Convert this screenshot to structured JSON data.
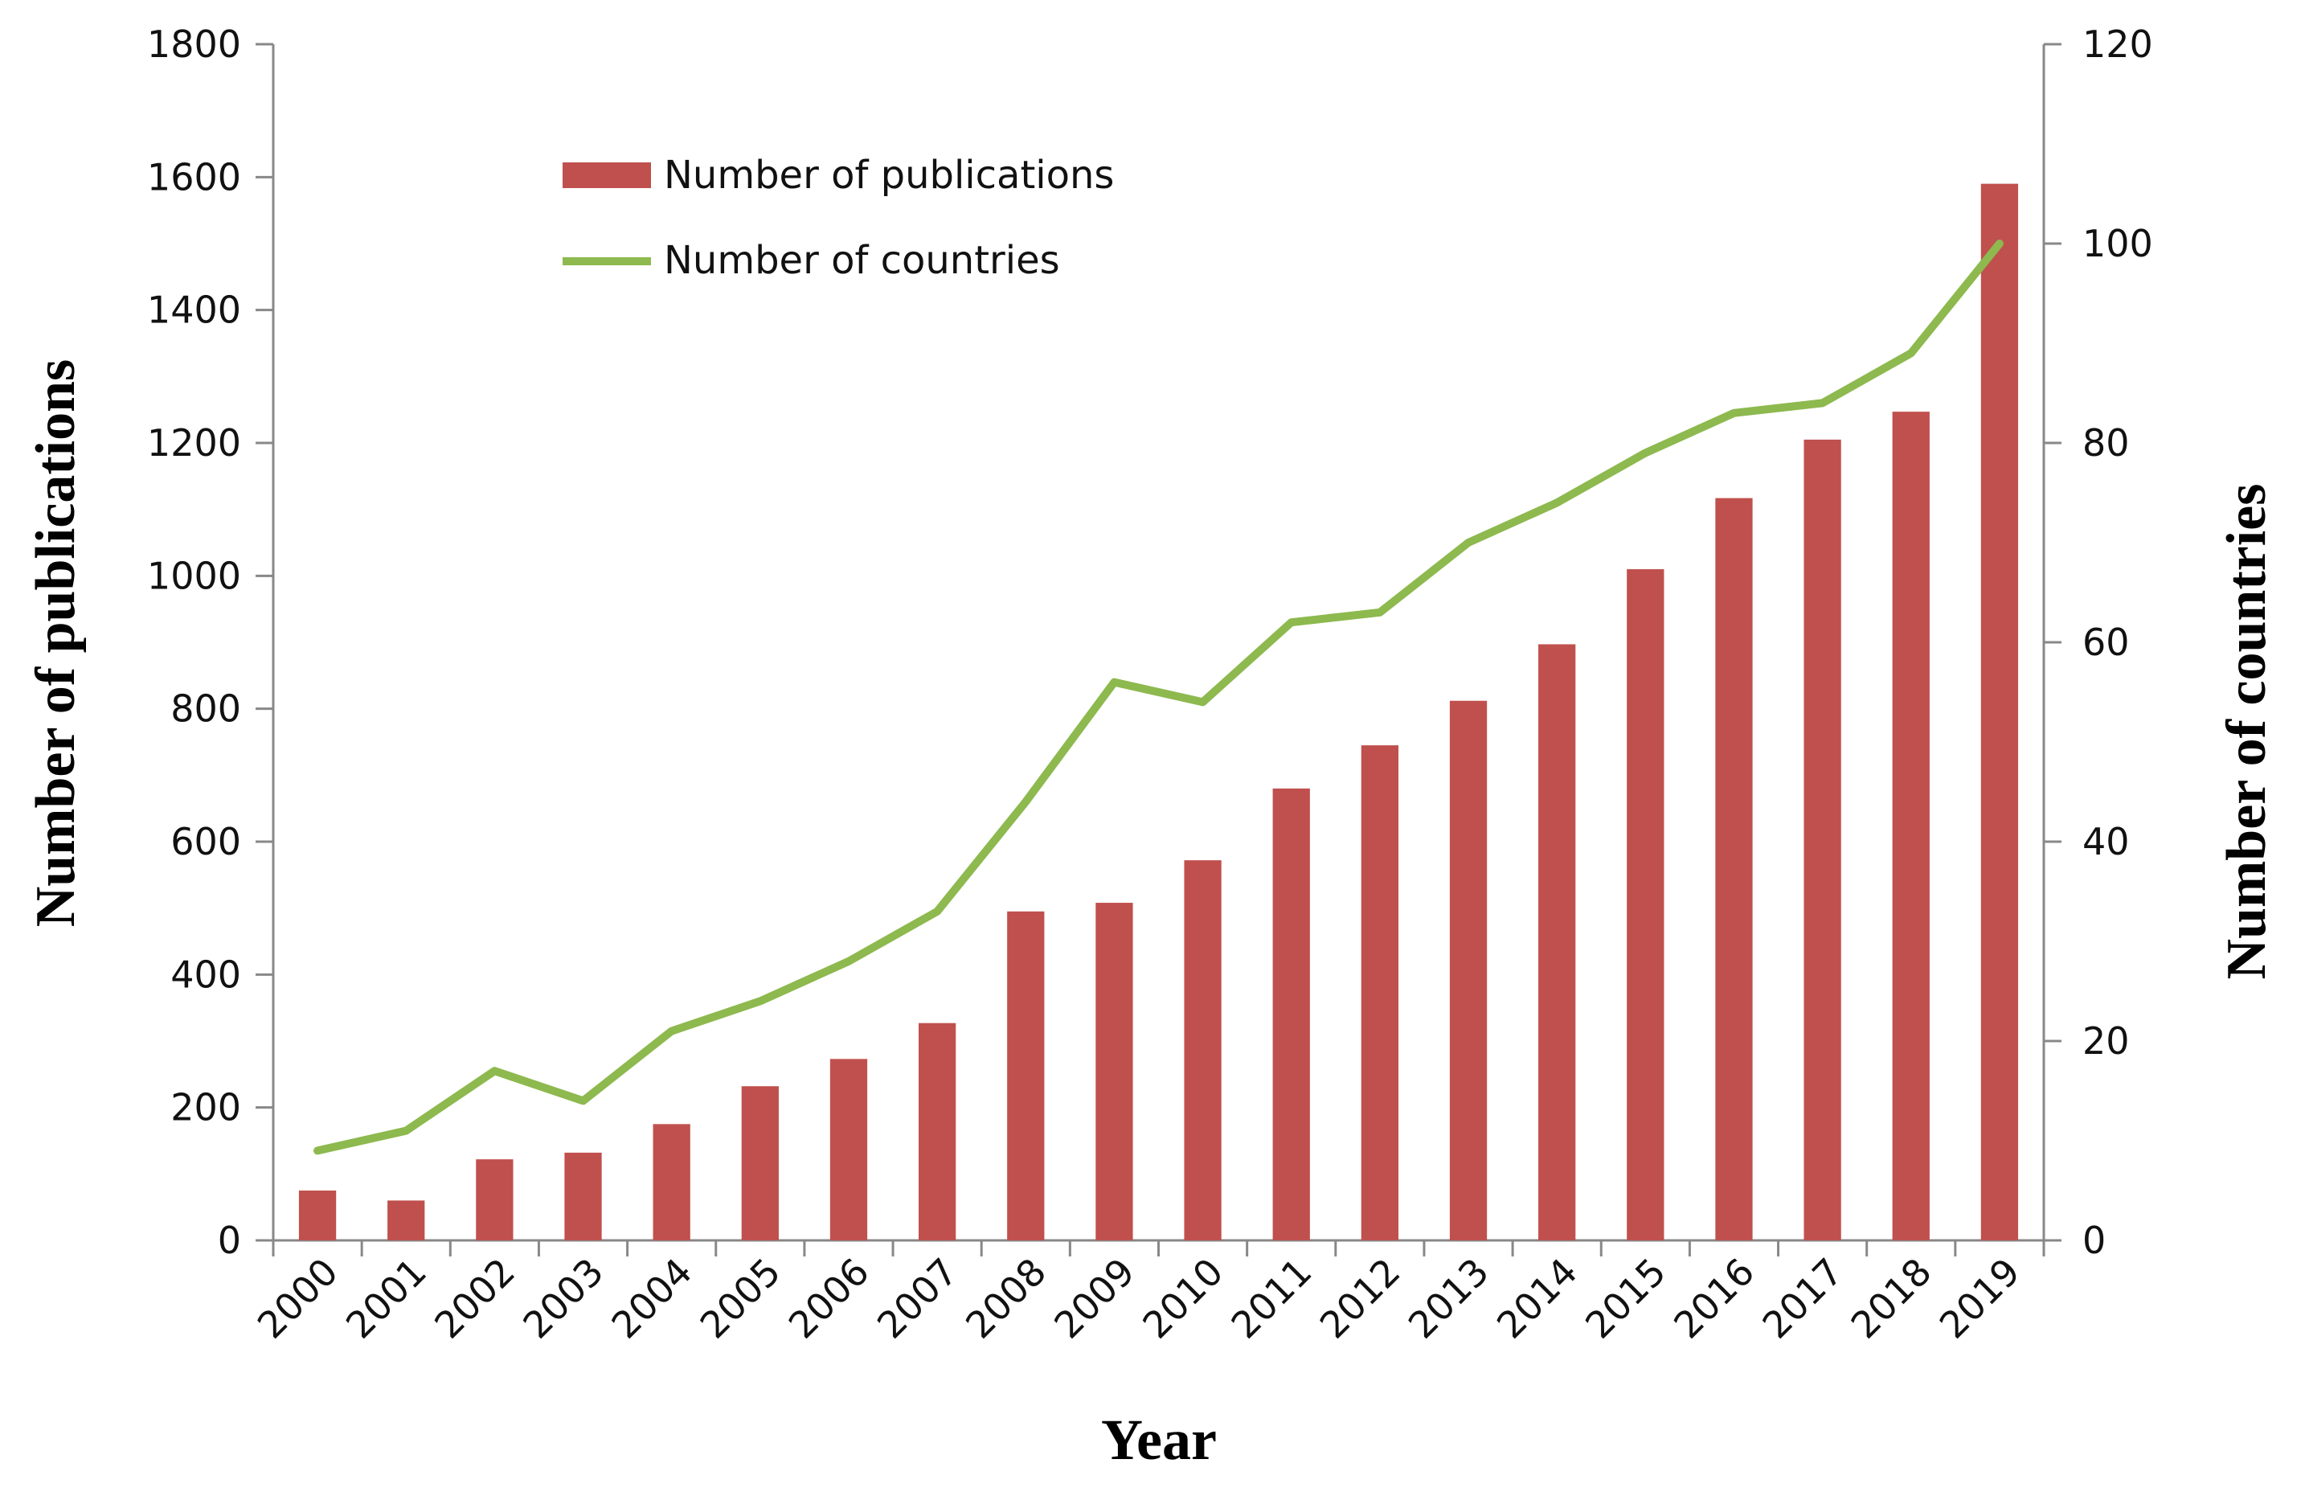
{
  "chart_data": {
    "type": "bar",
    "categories": [
      "2000",
      "2001",
      "2002",
      "2003",
      "2004",
      "2005",
      "2006",
      "2007",
      "2008",
      "2009",
      "2010",
      "2011",
      "2012",
      "2013",
      "2014",
      "2015",
      "2016",
      "2017",
      "2018",
      "2019"
    ],
    "series": [
      {
        "name": "Number of publications",
        "type": "bar",
        "axis": "left",
        "color": "#C0504D",
        "values": [
          75,
          60,
          122,
          132,
          175,
          232,
          273,
          327,
          495,
          508,
          572,
          680,
          745,
          812,
          897,
          1010,
          1117,
          1205,
          1247,
          1590
        ]
      },
      {
        "name": "Number of countries",
        "type": "line",
        "axis": "right",
        "color": "#8DB94E",
        "values": [
          9,
          11,
          17,
          14,
          21,
          24,
          28,
          33,
          44,
          56,
          54,
          62,
          63,
          70,
          74,
          79,
          83,
          84,
          89,
          100
        ]
      }
    ],
    "xlabel": "Year",
    "ylabel": "Number of publications",
    "y2label": "Number of countries",
    "ylim": [
      0,
      1800
    ],
    "y2lim": [
      0,
      120
    ],
    "yticks": [
      "0",
      "200",
      "400",
      "600",
      "800",
      "1000",
      "1200",
      "1400",
      "1600",
      "1800"
    ],
    "y2ticks": [
      "0",
      "20",
      "40",
      "60",
      "80",
      "100",
      "120"
    ],
    "grid": false,
    "legend_position": "top-left"
  }
}
